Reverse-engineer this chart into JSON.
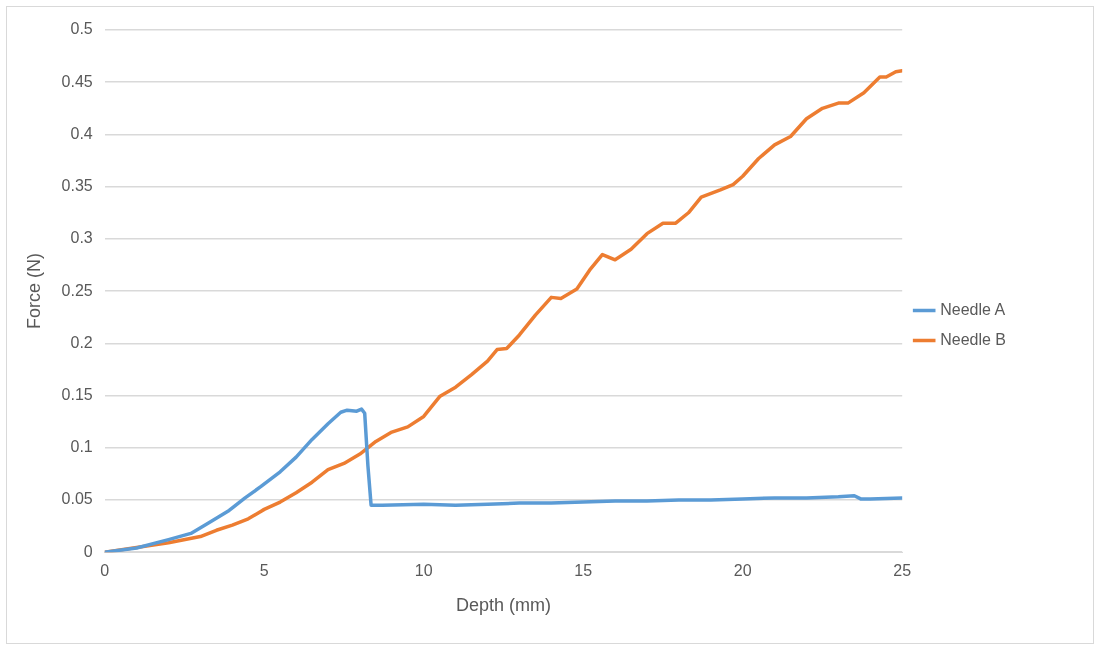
{
  "chart_data": {
    "type": "line",
    "xlabel": "Depth (mm)",
    "ylabel": "Force (N)",
    "xlim": [
      0,
      25
    ],
    "xticks": [
      0,
      5,
      10,
      15,
      20,
      25
    ],
    "ylim": [
      0,
      0.5
    ],
    "yticks": [
      0,
      0.05,
      0.1,
      0.15,
      0.2,
      0.25,
      0.3,
      0.35,
      0.4,
      0.45,
      0.5
    ],
    "grid": "y",
    "legend": "right",
    "marker": "none",
    "line_style": "solid",
    "series": [
      {
        "name": "Needle A",
        "color": "#5b9bd5",
        "x": [
          0,
          1,
          2,
          2.7,
          3.2,
          3.9,
          4.4,
          4.9,
          5.5,
          6,
          6.5,
          7,
          7.4,
          7.6,
          7.9,
          8.05,
          8.15,
          8.25,
          8.35,
          8.7,
          10,
          11,
          12,
          13,
          14,
          15,
          16,
          17,
          18,
          19,
          20,
          21,
          22,
          23,
          23.5,
          23.7,
          24,
          25
        ],
        "values": [
          0,
          0.004,
          0.012,
          0.018,
          0.027,
          0.04,
          0.052,
          0.063,
          0.077,
          0.091,
          0.108,
          0.123,
          0.134,
          0.136,
          0.135,
          0.137,
          0.133,
          0.083,
          0.045,
          0.045,
          0.046,
          0.045,
          0.046,
          0.047,
          0.047,
          0.048,
          0.049,
          0.049,
          0.05,
          0.05,
          0.051,
          0.052,
          0.052,
          0.053,
          0.054,
          0.051,
          0.051,
          0.052
        ]
      },
      {
        "name": "Needle B",
        "color": "#ed7d31",
        "x": [
          0,
          2,
          3,
          3.5,
          4,
          4.5,
          5,
          5.5,
          6,
          6.5,
          7,
          7.5,
          8,
          8.5,
          9,
          9.5,
          10,
          10.5,
          11,
          11.5,
          12,
          12.3,
          12.6,
          13,
          13.5,
          14,
          14.3,
          14.8,
          15.2,
          15.6,
          16,
          16.5,
          17,
          17.5,
          17.9,
          18.3,
          18.7,
          19.3,
          19.7,
          20,
          20.5,
          21,
          21.5,
          22,
          22.5,
          23,
          23.3,
          23.8,
          24.3,
          24.5,
          24.8,
          25
        ],
        "values": [
          0,
          0.009,
          0.015,
          0.021,
          0.026,
          0.032,
          0.041,
          0.048,
          0.057,
          0.067,
          0.079,
          0.085,
          0.094,
          0.106,
          0.115,
          0.12,
          0.13,
          0.149,
          0.158,
          0.17,
          0.183,
          0.194,
          0.195,
          0.208,
          0.227,
          0.244,
          0.243,
          0.252,
          0.27,
          0.285,
          0.28,
          0.29,
          0.305,
          0.315,
          0.315,
          0.325,
          0.34,
          0.347,
          0.352,
          0.36,
          0.377,
          0.39,
          0.398,
          0.415,
          0.425,
          0.43,
          0.43,
          0.44,
          0.455,
          0.455,
          0.46,
          0.461
        ]
      }
    ]
  }
}
